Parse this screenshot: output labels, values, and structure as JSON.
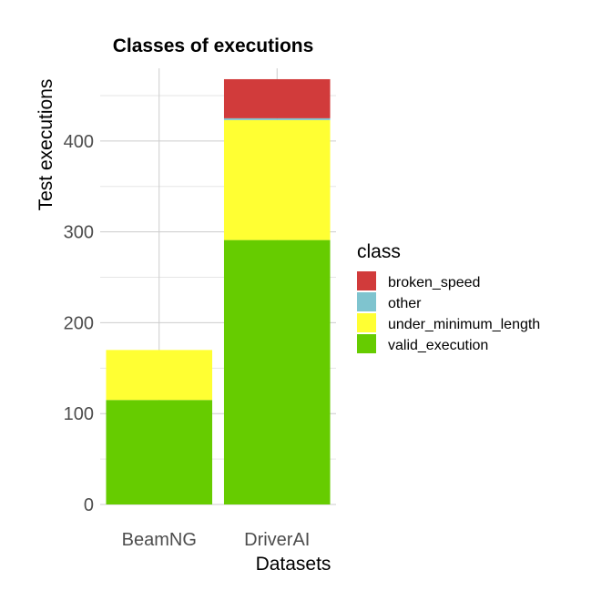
{
  "chart_data": {
    "type": "bar",
    "stacked": true,
    "title": "Classes of executions",
    "xlabel": "Datasets",
    "ylabel": "Test executions",
    "categories": [
      "BeamNG",
      "DriverAI"
    ],
    "ylim": [
      0,
      480
    ],
    "yticks": [
      0,
      100,
      200,
      300,
      400
    ],
    "grid": true,
    "legend": {
      "title": "class",
      "position": "right",
      "entries": [
        "broken_speed",
        "other",
        "under_minimum_length",
        "valid_execution"
      ]
    },
    "series": [
      {
        "name": "valid_execution",
        "color": "#66cc00",
        "values": [
          115,
          291
        ]
      },
      {
        "name": "under_minimum_length",
        "color": "#ffff33",
        "values": [
          55,
          132
        ]
      },
      {
        "name": "other",
        "color": "#7fc4cf",
        "values": [
          0,
          2
        ]
      },
      {
        "name": "broken_speed",
        "color": "#d13b3b",
        "values": [
          0,
          43
        ]
      }
    ]
  }
}
